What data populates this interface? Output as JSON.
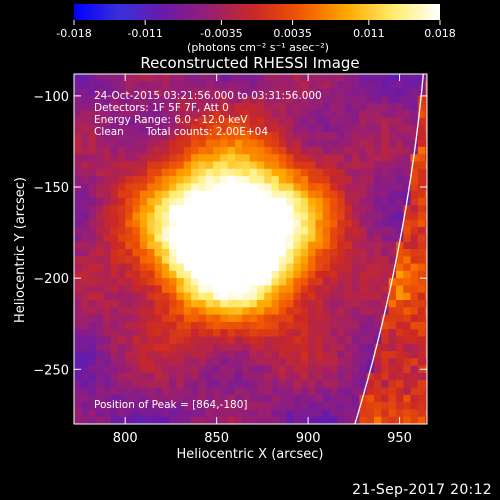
{
  "chart_data": {
    "type": "heatmap",
    "title": "Reconstructed RHESSI Image",
    "xlabel": "Heliocentric X (arcsec)",
    "ylabel": "Heliocentric Y (arcsec)",
    "xlim": [
      772,
      965
    ],
    "ylim": [
      -280,
      -88
    ],
    "x_ticks": [
      800,
      850,
      900,
      950
    ],
    "y_ticks": [
      -100,
      -150,
      -200,
      -250
    ],
    "colorbar": {
      "min": -0.018,
      "max": 0.018,
      "ticks": [
        "-0.018",
        "-0.011",
        "-0.0035",
        "0.0035",
        "0.011",
        "0.018"
      ],
      "unit_label": "(photons cm⁻² s⁻¹ asec⁻²)",
      "colors": [
        "#0000ff",
        "#3b2fd8",
        "#6a1aa8",
        "#9a1f70",
        "#cc2a22",
        "#f35a00",
        "#ffaa00",
        "#ffee70",
        "#ffffff"
      ]
    },
    "peak": {
      "x": 864,
      "y": -180
    },
    "limb": {
      "center": [
        0,
        0
      ],
      "radius_arcsec": 967
    },
    "annotations": {
      "time_range": "24-Oct-2015 03:21:56.000 to 03:31:56.000",
      "detectors": "Detectors: 1F 5F 7F, Att 0",
      "energy": "Energy Range: 6.0 - 12.0 keV",
      "method": "Clean",
      "counts": "Total counts: 2.00E+04",
      "peak_text": "Position of Peak = [864,-180]"
    },
    "grid": false,
    "legend": "none"
  },
  "timestamp": "21-Sep-2017 20:12",
  "colors": {
    "background": "#000000",
    "text": "#ffffff"
  }
}
